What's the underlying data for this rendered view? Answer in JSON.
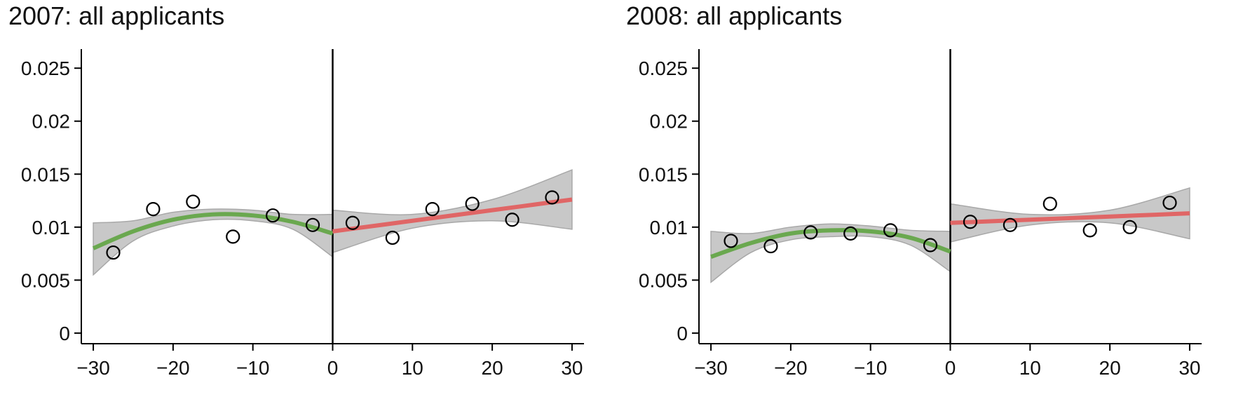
{
  "chart_data": [
    {
      "type": "scatter",
      "title": "2007: all applicants",
      "xlabel": "",
      "ylabel": "",
      "xlim": [
        -31.5,
        31.5
      ],
      "ylim": [
        -0.001,
        0.0268
      ],
      "xticks": [
        -30,
        -20,
        -10,
        0,
        10,
        20,
        30
      ],
      "xtick_labels": [
        "−30",
        "−20",
        "−10",
        "0",
        "10",
        "20",
        "30"
      ],
      "yticks": [
        0,
        0.005,
        0.01,
        0.015,
        0.02,
        0.025
      ],
      "ytick_labels": [
        "0",
        "0.005",
        "0.01",
        "0.015",
        "0.02",
        "0.025"
      ],
      "cutoff": 0,
      "points": {
        "x": [
          -27.5,
          -22.5,
          -17.5,
          -12.5,
          -7.5,
          -2.5,
          2.5,
          7.5,
          12.5,
          17.5,
          22.5,
          27.5
        ],
        "y": [
          0.0076,
          0.0117,
          0.0124,
          0.0091,
          0.0111,
          0.0102,
          0.0104,
          0.009,
          0.0117,
          0.0122,
          0.0107,
          0.0128
        ]
      },
      "fit_left": {
        "color": "#6aa84f",
        "x": [
          -30,
          -25,
          -20,
          -15,
          -10,
          -5,
          0
        ],
        "y": [
          0.008,
          0.0096,
          0.0107,
          0.0112,
          0.0111,
          0.0105,
          0.0094
        ],
        "ci_lower": [
          0.0055,
          0.0087,
          0.0101,
          0.0107,
          0.0106,
          0.0098,
          0.0072
        ],
        "ci_upper": [
          0.0104,
          0.0106,
          0.0114,
          0.0117,
          0.0116,
          0.0112,
          0.0112
        ]
      },
      "fit_right": {
        "color": "#e06666",
        "x": [
          0,
          10,
          20,
          30
        ],
        "y": [
          0.0096,
          0.0106,
          0.0116,
          0.0126
        ],
        "ci_lower": [
          0.0076,
          0.0099,
          0.0106,
          0.0098
        ],
        "ci_upper": [
          0.0116,
          0.0112,
          0.0126,
          0.0154
        ]
      }
    },
    {
      "type": "scatter",
      "title": "2008: all applicants",
      "xlabel": "",
      "ylabel": "",
      "xlim": [
        -31.5,
        31.5
      ],
      "ylim": [
        -0.001,
        0.0268
      ],
      "xticks": [
        -30,
        -20,
        -10,
        0,
        10,
        20,
        30
      ],
      "xtick_labels": [
        "−30",
        "−20",
        "−10",
        "0",
        "10",
        "20",
        "30"
      ],
      "yticks": [
        0,
        0.005,
        0.01,
        0.015,
        0.02,
        0.025
      ],
      "ytick_labels": [
        "0",
        "0.005",
        "0.01",
        "0.015",
        "0.02",
        "0.025"
      ],
      "cutoff": 0,
      "points": {
        "x": [
          -27.5,
          -22.5,
          -17.5,
          -12.5,
          -7.5,
          -2.5,
          2.5,
          7.5,
          12.5,
          17.5,
          22.5,
          27.5
        ],
        "y": [
          0.0087,
          0.0082,
          0.0095,
          0.0094,
          0.0097,
          0.0083,
          0.0105,
          0.0102,
          0.0122,
          0.0097,
          0.01,
          0.0123
        ]
      },
      "fit_left": {
        "color": "#6aa84f",
        "x": [
          -30,
          -25,
          -20,
          -15,
          -10,
          -5,
          0
        ],
        "y": [
          0.0072,
          0.0085,
          0.0094,
          0.0097,
          0.0096,
          0.009,
          0.0077
        ],
        "ci_lower": [
          0.0048,
          0.0076,
          0.0088,
          0.0091,
          0.0091,
          0.0083,
          0.0058
        ],
        "ci_upper": [
          0.0096,
          0.0094,
          0.01,
          0.0103,
          0.0101,
          0.0097,
          0.0096
        ]
      },
      "fit_right": {
        "color": "#e06666",
        "x": [
          0,
          10,
          20,
          30
        ],
        "y": [
          0.0104,
          0.0107,
          0.011,
          0.0113
        ],
        "ci_lower": [
          0.0086,
          0.0102,
          0.0104,
          0.0089
        ],
        "ci_upper": [
          0.0122,
          0.0112,
          0.0116,
          0.0137
        ]
      }
    }
  ]
}
